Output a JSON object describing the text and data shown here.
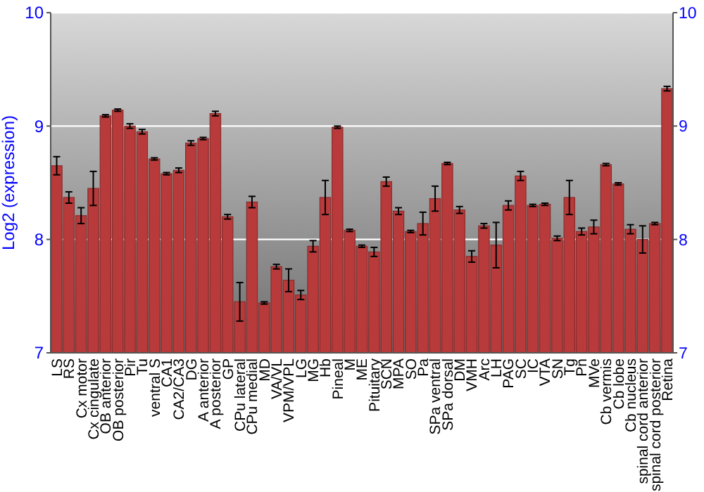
{
  "chart_data": {
    "type": "bar",
    "ylabel": "Log2 (expression)",
    "categories": [
      "LS",
      "RS",
      "Cx motor",
      "Cx cingulate",
      "OB anterior",
      "OB posterior",
      "Pir",
      "Tu",
      "ventral S",
      "CA1",
      "CA2/CA3",
      "DG",
      "A anterior",
      "A posterior",
      "GP",
      "CPu lateral",
      "CPu medial",
      "MD",
      "VA/VL",
      "VPM/VPL",
      "LG",
      "MG",
      "Hb",
      "Pineal",
      "M",
      "ME",
      "Pituitary",
      "SCN",
      "MPA",
      "SO",
      "Pa",
      "SPa ventral",
      "SPa dorsal",
      "DM",
      "VMH",
      "Arc",
      "LH",
      "PAG",
      "SC",
      "IC",
      "VTA",
      "SN",
      "Tg",
      "Pn",
      "MVe",
      "Cb vermis",
      "Cb lobe",
      "Cb nucleus",
      "spinal cord anterior",
      "spinal cord posterior",
      "Retina"
    ],
    "values": [
      8.65,
      8.37,
      8.21,
      8.45,
      9.09,
      9.14,
      9.0,
      8.95,
      8.71,
      8.58,
      8.61,
      8.85,
      8.89,
      9.11,
      8.2,
      7.45,
      8.33,
      7.44,
      7.76,
      7.64,
      7.51,
      7.94,
      8.37,
      8.99,
      8.08,
      7.94,
      7.89,
      8.51,
      8.25,
      8.07,
      8.14,
      8.36,
      8.67,
      8.26,
      7.85,
      8.12,
      7.95,
      8.3,
      8.56,
      8.3,
      8.31,
      8.01,
      8.37,
      8.07,
      8.11,
      8.66,
      8.49,
      8.09,
      8.0,
      8.14,
      9.33
    ],
    "errors": [
      0.08,
      0.05,
      0.07,
      0.15,
      0.01,
      0.01,
      0.02,
      0.02,
      0.01,
      0.01,
      0.02,
      0.02,
      0.01,
      0.02,
      0.02,
      0.17,
      0.05,
      0.01,
      0.02,
      0.1,
      0.04,
      0.05,
      0.15,
      0.01,
      0.01,
      0.01,
      0.04,
      0.04,
      0.03,
      0.01,
      0.1,
      0.11,
      0.01,
      0.03,
      0.05,
      0.02,
      0.2,
      0.04,
      0.04,
      0.01,
      0.01,
      0.02,
      0.15,
      0.03,
      0.06,
      0.01,
      0.01,
      0.04,
      0.12,
      0.01,
      0.02
    ],
    "color": "#b83a3a",
    "ylim": [
      7,
      10
    ],
    "yticks": [
      7,
      8,
      9,
      10
    ],
    "y2lim": [
      7,
      10
    ],
    "y2ticks": [
      7,
      8,
      9,
      10
    ],
    "grid": "y"
  }
}
